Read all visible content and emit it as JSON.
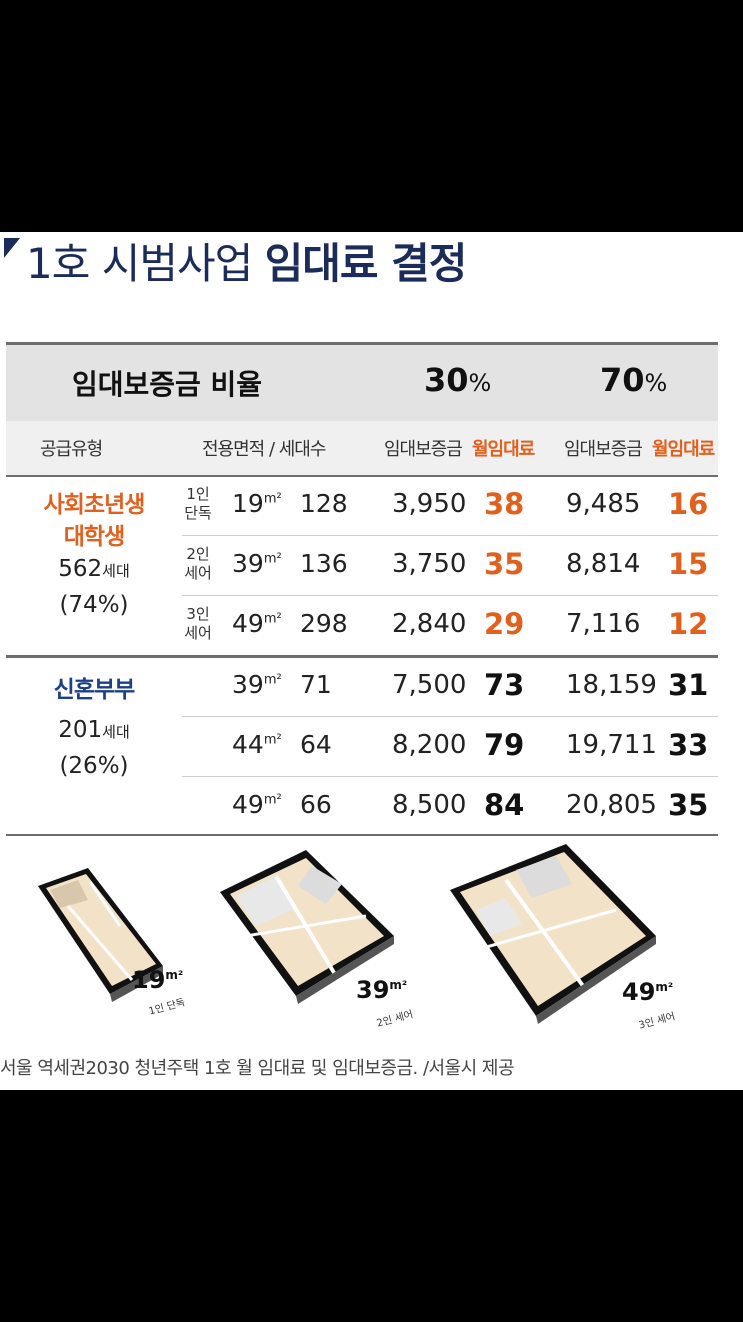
{
  "title": {
    "prefix": "1호 시범사업 ",
    "emphasis": "임대료 결정"
  },
  "table": {
    "ratio_label": "임대보증금 비율",
    "pct_a": {
      "num": "30",
      "sym": "%"
    },
    "pct_b": {
      "num": "70",
      "sym": "%"
    },
    "headers": {
      "supply_type": "공급유형",
      "area_units": "전용면적 / 세대수",
      "deposit_a": "임대보증금",
      "rent_a": "월임대료",
      "deposit_b": "임대보증금",
      "rent_b": "월임대료"
    },
    "groups": [
      {
        "name_1": "사회초년생",
        "name_2": "대학생",
        "count": "562",
        "count_unit": "세대",
        "share": "(74%)"
      },
      {
        "name_1": "신혼부부",
        "count": "201",
        "count_unit": "세대",
        "share": "(26%)"
      }
    ],
    "rows": [
      {
        "sub": "1인\n단독",
        "area": "19",
        "area_unit": "m²",
        "units": "128",
        "dep30": "3,950",
        "rent30": "38",
        "dep70": "9,485",
        "rent70": "16"
      },
      {
        "sub": "2인\n세어",
        "area": "39",
        "area_unit": "m²",
        "units": "136",
        "dep30": "3,750",
        "rent30": "35",
        "dep70": "8,814",
        "rent70": "15"
      },
      {
        "sub": "3인\n세어",
        "area": "49",
        "area_unit": "m²",
        "units": "298",
        "dep30": "2,840",
        "rent30": "29",
        "dep70": "7,116",
        "rent70": "12"
      },
      {
        "sub": "",
        "area": "39",
        "area_unit": "m²",
        "units": "71",
        "dep30": "7,500",
        "rent30": "73",
        "dep70": "18,159",
        "rent70": "31"
      },
      {
        "sub": "",
        "area": "44",
        "area_unit": "m²",
        "units": "64",
        "dep30": "8,200",
        "rent30": "79",
        "dep70": "19,711",
        "rent70": "33"
      },
      {
        "sub": "",
        "area": "49",
        "area_unit": "m²",
        "units": "66",
        "dep30": "8,500",
        "rent30": "84",
        "dep70": "20,805",
        "rent70": "35"
      }
    ]
  },
  "plans": [
    {
      "size": "19",
      "unit": "m²",
      "sub": "1인 단독"
    },
    {
      "size": "39",
      "unit": "m²",
      "sub": "2인 세어"
    },
    {
      "size": "49",
      "unit": "m²",
      "sub": "3인 세어"
    }
  ],
  "caption": "서울 역세권2030 청년주택 1호 월 임대료 및 임대보증금. /서울시 제공",
  "colors": {
    "navy": "#1c2c5a",
    "orange": "#e2601d",
    "header_gray": "#e3e3e3"
  }
}
